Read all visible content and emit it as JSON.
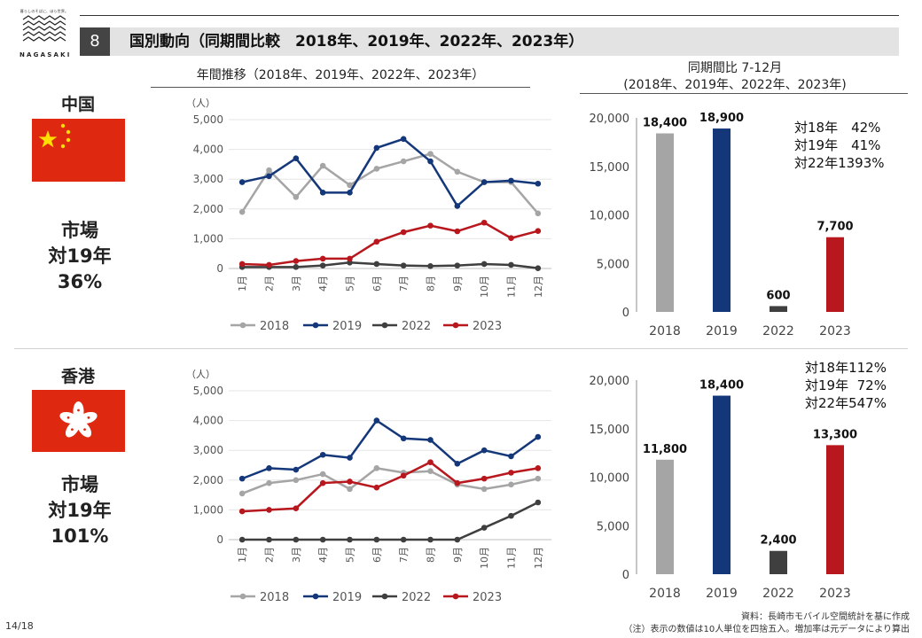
{
  "header": {
    "logo_tagline": "暮らしのそばに、ほら世界。",
    "logo_brand": "NAGASAKI",
    "section_number": "8",
    "title": "国別動向（同期間比較　2018年、2019年、2022年、2023年）"
  },
  "subheads": {
    "line": "年間推移（2018年、2019年、2022年、2023年）",
    "bar_line1": "同期間比 7-12月",
    "bar_line2": "(2018年、2019年、2022年、2023年)"
  },
  "colors": {
    "2018": "#a5a5a5",
    "2019": "#14377a",
    "2022": "#3f3f3f",
    "2023": "#b8171e",
    "china_red": "#de2910",
    "china_star": "#ffde00",
    "hk_red": "#de2910"
  },
  "footer": {
    "page": "14/18",
    "source1": "資料：長崎市モバイル空間統計を基に作成",
    "source2": "（注）表示の数値は10人単位を四捨五入。増加率は元データにより算出"
  },
  "countries": [
    {
      "name": "中国",
      "flag_icon": "china-flag-icon",
      "market_line1": "市場",
      "market_line2": "対19年",
      "market_line3": "36%",
      "growth_text": "対18年　42%\n対19年　41%\n対22年1393%",
      "chart_data": [
        {
          "type": "line",
          "unit": "（人）",
          "categories": [
            "1月",
            "2月",
            "3月",
            "4月",
            "5月",
            "6月",
            "7月",
            "8月",
            "9月",
            "10月",
            "11月",
            "12月"
          ],
          "ylim": [
            0,
            5000
          ],
          "yticks": [
            "0",
            "1,000",
            "2,000",
            "3,000",
            "4,000",
            "5,000"
          ],
          "legend": [
            "2018",
            "2019",
            "2022",
            "2023"
          ],
          "legend_position": "bottom",
          "series": [
            {
              "name": "2018",
              "values": [
                1900,
                3300,
                2400,
                3450,
                2800,
                3350,
                3600,
                3850,
                3250,
                2900,
                2900,
                1850
              ]
            },
            {
              "name": "2019",
              "values": [
                2900,
                3100,
                3700,
                2550,
                2550,
                4050,
                4350,
                3600,
                2100,
                2900,
                2950,
                2850
              ]
            },
            {
              "name": "2022",
              "values": [
                50,
                50,
                50,
                100,
                200,
                150,
                100,
                80,
                100,
                150,
                120,
                10
              ]
            },
            {
              "name": "2023",
              "values": [
                150,
                120,
                250,
                330,
                330,
                900,
                1220,
                1440,
                1250,
                1540,
                1020,
                1260
              ]
            }
          ]
        },
        {
          "type": "bar",
          "categories": [
            "2018",
            "2019",
            "2022",
            "2023"
          ],
          "values": [
            18400,
            18900,
            600,
            7700
          ],
          "labels": [
            "18,400",
            "18,900",
            "600",
            "7,700"
          ],
          "ylim": [
            0,
            20000
          ],
          "yticks": [
            "0",
            "5,000",
            "10,000",
            "15,000",
            "20,000"
          ]
        }
      ]
    },
    {
      "name": "香港",
      "flag_icon": "hongkong-flag-icon",
      "market_line1": "市場",
      "market_line2": "対19年",
      "market_line3": "101%",
      "growth_text": "対18年112%\n対19年  72%\n対22年547%",
      "chart_data": [
        {
          "type": "line",
          "unit": "（人）",
          "categories": [
            "1月",
            "2月",
            "3月",
            "4月",
            "5月",
            "6月",
            "7月",
            "8月",
            "9月",
            "10月",
            "11月",
            "12月"
          ],
          "ylim": [
            0,
            5000
          ],
          "yticks": [
            "0",
            "1,000",
            "2,000",
            "3,000",
            "4,000",
            "5,000"
          ],
          "legend": [
            "2018",
            "2019",
            "2022",
            "2023"
          ],
          "legend_position": "bottom",
          "series": [
            {
              "name": "2018",
              "values": [
                1550,
                1900,
                2000,
                2200,
                1700,
                2400,
                2250,
                2300,
                1850,
                1700,
                1850,
                2050
              ]
            },
            {
              "name": "2019",
              "values": [
                2050,
                2400,
                2350,
                2850,
                2750,
                4000,
                3400,
                3350,
                2550,
                3000,
                2800,
                3450
              ]
            },
            {
              "name": "2022",
              "values": [
                0,
                0,
                0,
                0,
                0,
                0,
                0,
                0,
                0,
                400,
                800,
                1250
              ]
            },
            {
              "name": "2023",
              "values": [
                950,
                1000,
                1050,
                1900,
                1950,
                1750,
                2150,
                2600,
                1900,
                2050,
                2250,
                2400
              ]
            }
          ]
        },
        {
          "type": "bar",
          "categories": [
            "2018",
            "2019",
            "2022",
            "2023"
          ],
          "values": [
            11800,
            18400,
            2400,
            13300
          ],
          "labels": [
            "11,800",
            "18,400",
            "2,400",
            "13,300"
          ],
          "ylim": [
            0,
            20000
          ],
          "yticks": [
            "0",
            "5,000",
            "10,000",
            "15,000",
            "20,000"
          ]
        }
      ]
    }
  ]
}
